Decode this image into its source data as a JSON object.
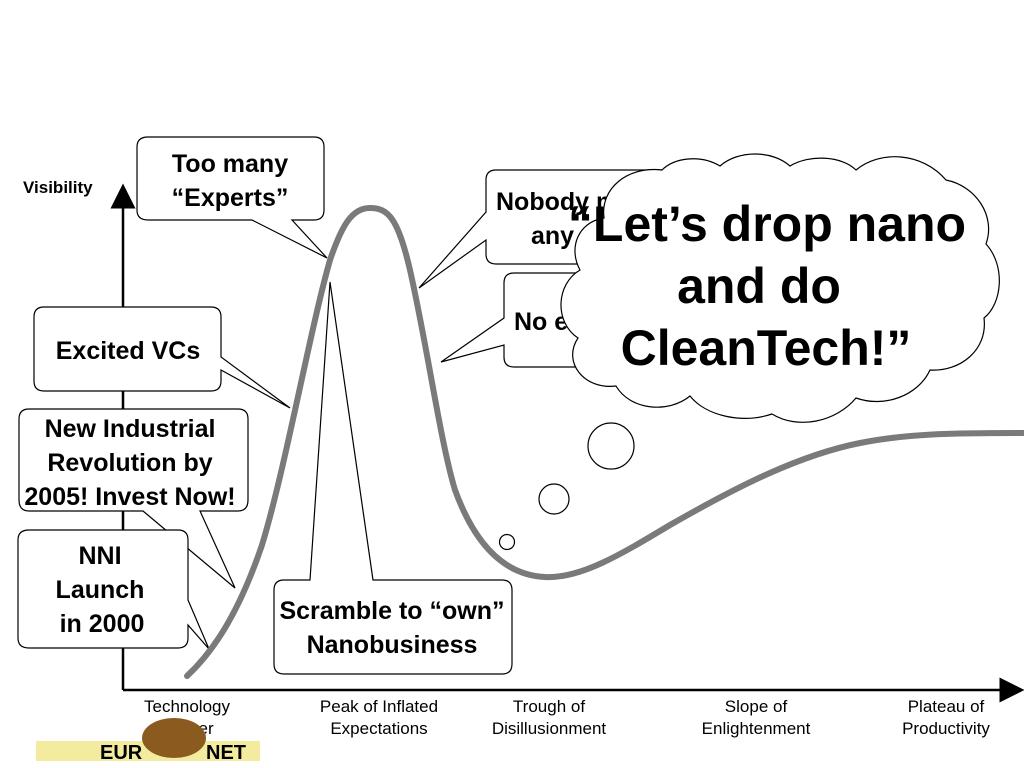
{
  "diagram": {
    "y_axis_label": "Visibility",
    "phases": [
      {
        "line1": "Technology",
        "line2": "Trigger"
      },
      {
        "line1": "Peak of Inflated",
        "line2": "Expectations"
      },
      {
        "line1": "Trough of",
        "line2": "Disillusionment"
      },
      {
        "line1": "Slope of",
        "line2": "Enlightenment"
      },
      {
        "line1": "Plateau of",
        "line2": "Productivity"
      }
    ],
    "callouts": {
      "too_many_experts": {
        "line1": "Too many",
        "line2": "“Experts”"
      },
      "excited_vcs": {
        "line1": "Excited VCs"
      },
      "new_industrial_revolution": {
        "line1": "New Industrial",
        "line2": "Revolution by",
        "line3": "2005! Invest Now!"
      },
      "nni_launch": {
        "line1": "NNI",
        "line2": "Launch",
        "line3": "in 2000"
      },
      "scramble": {
        "line1": "Scramble to “own”",
        "line2": "Nanobusiness"
      },
      "nobody": {
        "line1": "Nobody m",
        "line2": "any m"
      },
      "no_exits": {
        "line1": "No ex"
      }
    },
    "thought_cloud": {
      "line1": "“Let’s drop nano",
      "line2": "and do",
      "line3": "CleanTech!”"
    },
    "logo": {
      "left_text": "EUR",
      "right_text": "NET"
    },
    "colors": {
      "curve": "#7a7a7a",
      "axis": "#000000",
      "logo_background": "#f3eb9e",
      "logo_emblem": "#8a5a1e"
    }
  }
}
